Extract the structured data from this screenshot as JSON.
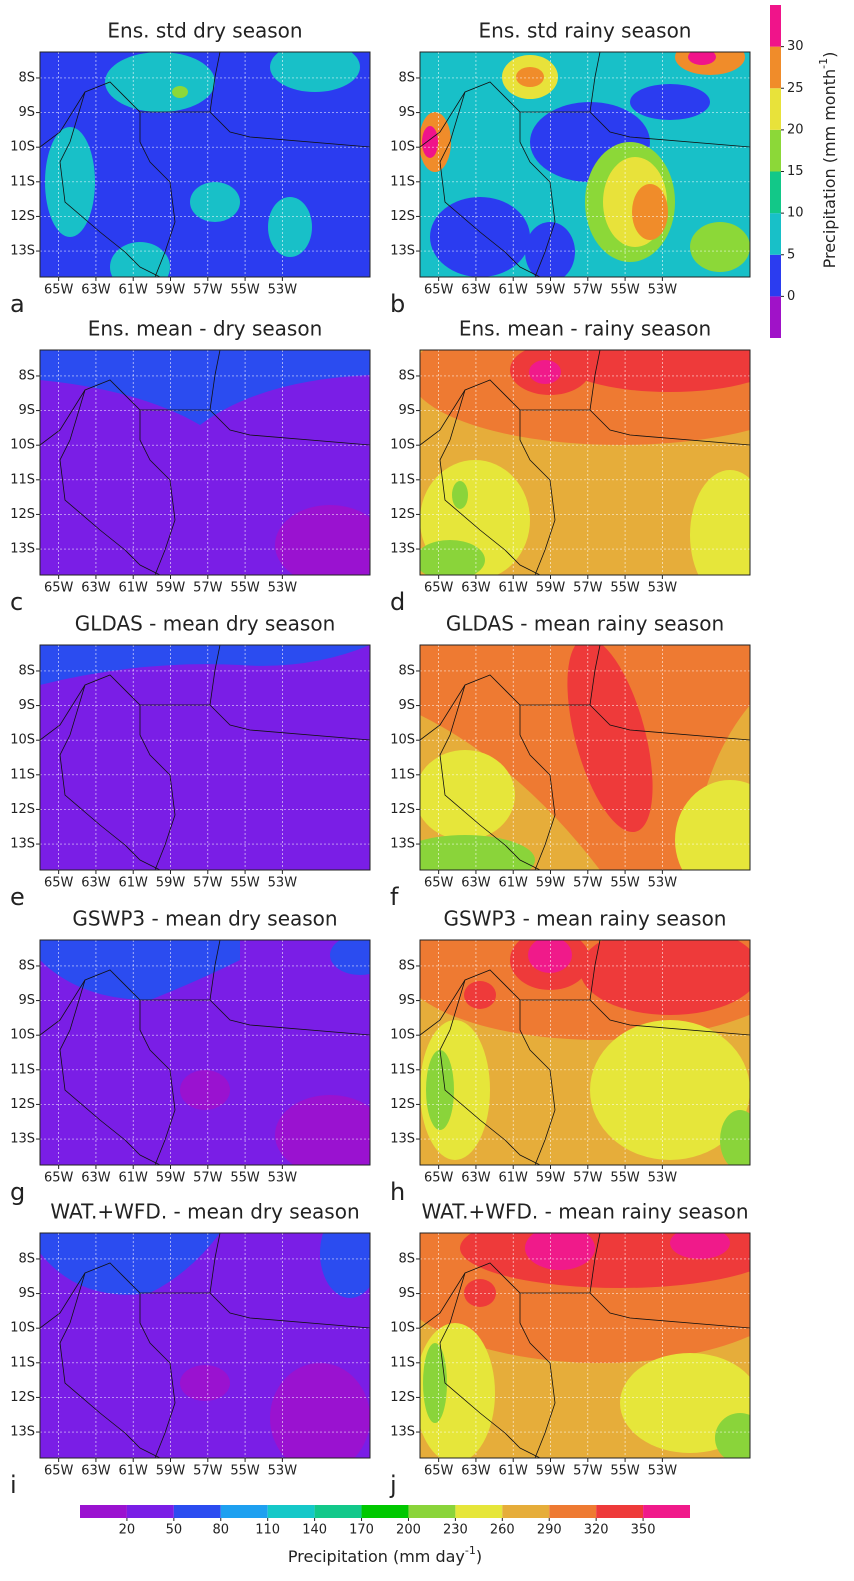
{
  "panels": [
    {
      "title": "Ens. std dry season",
      "letter": "a"
    },
    {
      "title": "Ens. std rainy season",
      "letter": "b"
    },
    {
      "title": "Ens. mean - dry season",
      "letter": "c"
    },
    {
      "title": "Ens. mean - rainy season",
      "letter": "d"
    },
    {
      "title": "GLDAS - mean dry season",
      "letter": "e"
    },
    {
      "title": "GLDAS - mean rainy season",
      "letter": "f"
    },
    {
      "title": "GSWP3 - mean dry season",
      "letter": "g"
    },
    {
      "title": "GSWP3 - mean rainy season",
      "letter": "h"
    },
    {
      "title": "WAT.+WFD. - mean dry season",
      "letter": "i"
    },
    {
      "title": "WAT.+WFD. - mean rainy season",
      "letter": "j"
    }
  ],
  "map_axes": {
    "xlim": [
      -66,
      -48.3
    ],
    "ylim": [
      -13.75,
      -7.25
    ],
    "lon_ticks": [
      {
        "value": -65,
        "label": "65W"
      },
      {
        "value": -63,
        "label": "63W"
      },
      {
        "value": -61,
        "label": "61W"
      },
      {
        "value": -59,
        "label": "59W"
      },
      {
        "value": -57,
        "label": "57W"
      },
      {
        "value": -55,
        "label": "55W"
      },
      {
        "value": -53,
        "label": "53W"
      }
    ],
    "lat_ticks": [
      {
        "value": -8,
        "label": "8S"
      },
      {
        "value": -9,
        "label": "9S"
      },
      {
        "value": -10,
        "label": "10S"
      },
      {
        "value": -11,
        "label": "11S"
      },
      {
        "value": -12,
        "label": "12S"
      },
      {
        "value": -13,
        "label": "13S"
      }
    ]
  },
  "colorbar_std": {
    "lim": [
      -5,
      35
    ],
    "ticks": [
      0,
      5,
      10,
      15,
      20,
      25,
      30
    ],
    "colors": [
      "#a012c8",
      "#2b3cf0",
      "#18c0c8",
      "#12c888",
      "#8cd838",
      "#e8e23a",
      "#f08c2a",
      "#f0148a"
    ],
    "label_parts": [
      "Precipitation (mm month",
      "-1",
      ")"
    ]
  },
  "colorbar_mean": {
    "lim": [
      -10,
      380
    ],
    "ticks": [
      20,
      50,
      80,
      110,
      140,
      170,
      200,
      230,
      260,
      290,
      320,
      350
    ],
    "colors": [
      "#9a12d0",
      "#7a1ee6",
      "#2b4cf0",
      "#1ea0f0",
      "#15c8c8",
      "#12c88a",
      "#00c800",
      "#8ad43a",
      "#e6e63a",
      "#e6ad3a",
      "#ee7a32",
      "#ee3a3a",
      "#f01a8a"
    ],
    "label_parts": [
      "Precipitation (mm day",
      "-1",
      ")"
    ]
  }
}
